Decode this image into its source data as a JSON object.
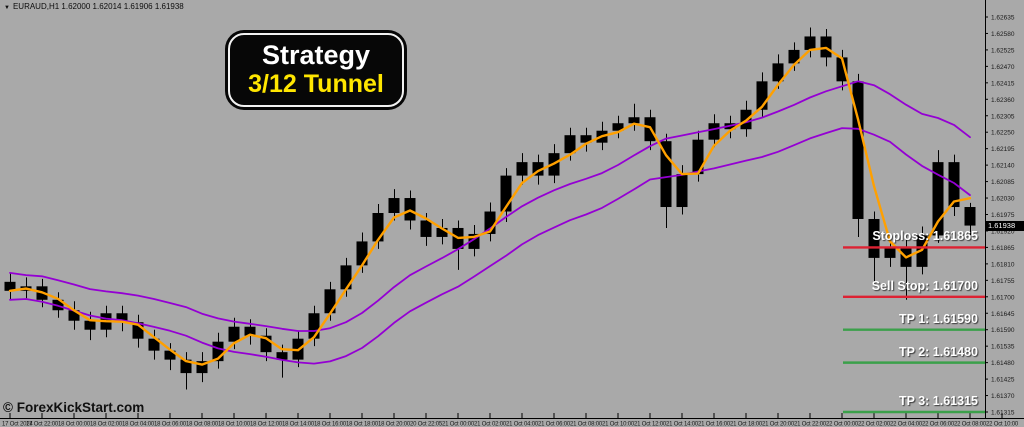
{
  "header": {
    "collapse_icon": "▼",
    "symbol_info": "EURAUD,H1 1.62000 1.62014 1.61906 1.61938"
  },
  "strategy_badge": {
    "line1": "Strategy",
    "line2": "3/12 Tunnel"
  },
  "watermark": "© ForexKickStart.com",
  "colors": {
    "background": "#a9a9a9",
    "candle": "#000000",
    "fast_ma": "#ffa000",
    "tunnel": "#9400d3",
    "stop_line": "#dd2233",
    "target_line": "#3ba04a",
    "axis_text": "#1a1a1a",
    "axis_line": "#000000",
    "badge_yellow": "#ffe600"
  },
  "chart_data": {
    "type": "candlestick",
    "symbol": "EURAUD",
    "timeframe": "H1",
    "title": "EURAUD,H1 1.62000 1.62014 1.61906 1.61938",
    "last_candle_display": {
      "open": "1.62000",
      "high": "1.62014",
      "low": "1.61906",
      "close": "1.61938"
    },
    "current_price": "1.61938",
    "current_price_value": 1.61938,
    "y_axis": {
      "min": 1.61315,
      "max": 1.62635,
      "step": 0.00055,
      "labels": [
        "1.62635",
        "1.62580",
        "1.62525",
        "1.62470",
        "1.62415",
        "1.62360",
        "1.62305",
        "1.62250",
        "1.62195",
        "1.62140",
        "1.62085",
        "1.62030",
        "1.61975",
        "1.61920",
        "1.61865",
        "1.61810",
        "1.61755",
        "1.61700",
        "1.61645",
        "1.61590",
        "1.61535",
        "1.61480",
        "1.61425",
        "1.61370",
        "1.61315"
      ]
    },
    "x_axis": {
      "labels": [
        "17 Oct 2024",
        "17 Oct 22:00",
        "18 Oct 00:00",
        "18 Oct 02:00",
        "18 Oct 04:00",
        "18 Oct 06:00",
        "18 Oct 08:00",
        "18 Oct 10:00",
        "18 Oct 12:00",
        "18 Oct 14:00",
        "18 Oct 16:00",
        "18 Oct 18:00",
        "18 Oct 20:00",
        "20 Oct 22:05",
        "21 Oct 00:00",
        "21 Oct 02:00",
        "21 Oct 04:00",
        "21 Oct 06:00",
        "21 Oct 08:00",
        "21 Oct 10:00",
        "21 Oct 12:00",
        "21 Oct 14:00",
        "21 Oct 16:00",
        "21 Oct 18:00",
        "21 Oct 20:00",
        "21 Oct 22:00",
        "22 Oct 00:00",
        "22 Oct 02:00",
        "22 Oct 04:00",
        "22 Oct 06:00",
        "22 Oct 08:00",
        "22 Oct 10:00"
      ]
    },
    "levels": [
      {
        "name": "stoploss",
        "label": "Stoploss: 1.61865",
        "price": 1.61865,
        "color": "#dd2233"
      },
      {
        "name": "sell-stop",
        "label": "Sell Stop: 1.61700",
        "price": 1.617,
        "color": "#dd2233"
      },
      {
        "name": "tp1",
        "label": "TP 1: 1.61590",
        "price": 1.6159,
        "color": "#3ba04a"
      },
      {
        "name": "tp2",
        "label": "TP 2: 1.61480",
        "price": 1.6148,
        "color": "#3ba04a"
      },
      {
        "name": "tp3",
        "label": "TP 3: 1.61315",
        "price": 1.61315,
        "color": "#3ba04a"
      }
    ],
    "overlays": [
      {
        "name": "fast-ma",
        "type": "sma",
        "period": 3,
        "source": "close",
        "color": "#ffa000"
      },
      {
        "name": "tunnel-upper",
        "type": "sma",
        "period": 12,
        "source": "high",
        "color": "#9400d3"
      },
      {
        "name": "tunnel-lower",
        "type": "sma",
        "period": 12,
        "source": "low",
        "color": "#9400d3"
      }
    ],
    "candles": [
      [
        1.6175,
        1.6178,
        1.6169,
        1.6172
      ],
      [
        1.6172,
        1.61765,
        1.61695,
        1.61735
      ],
      [
        1.61735,
        1.6176,
        1.61665,
        1.6169
      ],
      [
        1.6169,
        1.61715,
        1.6163,
        1.61655
      ],
      [
        1.61655,
        1.61685,
        1.6159,
        1.6162
      ],
      [
        1.6162,
        1.6165,
        1.61555,
        1.6159
      ],
      [
        1.6159,
        1.6167,
        1.61565,
        1.61645
      ],
      [
        1.61645,
        1.6167,
        1.61585,
        1.61615
      ],
      [
        1.61615,
        1.6164,
        1.6153,
        1.6156
      ],
      [
        1.6156,
        1.6159,
        1.6149,
        1.6152
      ],
      [
        1.6152,
        1.61545,
        1.61455,
        1.6149
      ],
      [
        1.6149,
        1.61515,
        1.6139,
        1.61445
      ],
      [
        1.61445,
        1.61515,
        1.61415,
        1.61485
      ],
      [
        1.61485,
        1.6158,
        1.6146,
        1.6155
      ],
      [
        1.6155,
        1.6163,
        1.61525,
        1.616
      ],
      [
        1.616,
        1.61625,
        1.6154,
        1.6157
      ],
      [
        1.6157,
        1.61595,
        1.61485,
        1.61515
      ],
      [
        1.61515,
        1.6154,
        1.6143,
        1.6149
      ],
      [
        1.6149,
        1.61585,
        1.61465,
        1.6156
      ],
      [
        1.6156,
        1.6167,
        1.61535,
        1.61645
      ],
      [
        1.61645,
        1.6175,
        1.6162,
        1.61725
      ],
      [
        1.61725,
        1.6183,
        1.617,
        1.61805
      ],
      [
        1.61805,
        1.61915,
        1.6178,
        1.61885
      ],
      [
        1.61885,
        1.6201,
        1.6186,
        1.6198
      ],
      [
        1.6198,
        1.6206,
        1.61955,
        1.6203
      ],
      [
        1.6203,
        1.62055,
        1.61925,
        1.61955
      ],
      [
        1.61955,
        1.6198,
        1.6187,
        1.619
      ],
      [
        1.619,
        1.6196,
        1.61875,
        1.6193
      ],
      [
        1.6193,
        1.61955,
        1.6179,
        1.6186
      ],
      [
        1.6186,
        1.6194,
        1.61835,
        1.6191
      ],
      [
        1.6191,
        1.62015,
        1.61885,
        1.61985
      ],
      [
        1.61985,
        1.6213,
        1.6195,
        1.62105
      ],
      [
        1.62105,
        1.6218,
        1.62075,
        1.6215
      ],
      [
        1.6215,
        1.62175,
        1.62075,
        1.62105
      ],
      [
        1.62105,
        1.6221,
        1.6208,
        1.6218
      ],
      [
        1.6218,
        1.62265,
        1.62155,
        1.6224
      ],
      [
        1.6224,
        1.62265,
        1.62185,
        1.62215
      ],
      [
        1.62215,
        1.62285,
        1.6219,
        1.62255
      ],
      [
        1.62255,
        1.62305,
        1.6223,
        1.6228
      ],
      [
        1.6228,
        1.62345,
        1.62255,
        1.623
      ],
      [
        1.623,
        1.62325,
        1.6219,
        1.6222
      ],
      [
        1.6222,
        1.62245,
        1.6193,
        1.62
      ],
      [
        1.62,
        1.6214,
        1.61975,
        1.6211
      ],
      [
        1.6211,
        1.62255,
        1.62085,
        1.62225
      ],
      [
        1.62225,
        1.6231,
        1.622,
        1.6228
      ],
      [
        1.6228,
        1.62305,
        1.6223,
        1.6226
      ],
      [
        1.6226,
        1.62355,
        1.62235,
        1.62325
      ],
      [
        1.62325,
        1.6245,
        1.623,
        1.6242
      ],
      [
        1.6242,
        1.6251,
        1.62395,
        1.6248
      ],
      [
        1.6248,
        1.6255,
        1.62455,
        1.62525
      ],
      [
        1.62525,
        1.626,
        1.625,
        1.6257
      ],
      [
        1.6257,
        1.62595,
        1.6247,
        1.625
      ],
      [
        1.625,
        1.62525,
        1.6239,
        1.6242
      ],
      [
        1.6242,
        1.62445,
        1.619,
        1.6196
      ],
      [
        1.6196,
        1.61985,
        1.6174,
        1.6183
      ],
      [
        1.6183,
        1.61895,
        1.618,
        1.61865
      ],
      [
        1.61865,
        1.6189,
        1.6169,
        1.618
      ],
      [
        1.618,
        1.61935,
        1.61775,
        1.61905
      ],
      [
        1.61905,
        1.6219,
        1.6188,
        1.6215
      ],
      [
        1.6215,
        1.62175,
        1.6197,
        1.62
      ],
      [
        1.62,
        1.62014,
        1.61906,
        1.61938
      ]
    ]
  }
}
